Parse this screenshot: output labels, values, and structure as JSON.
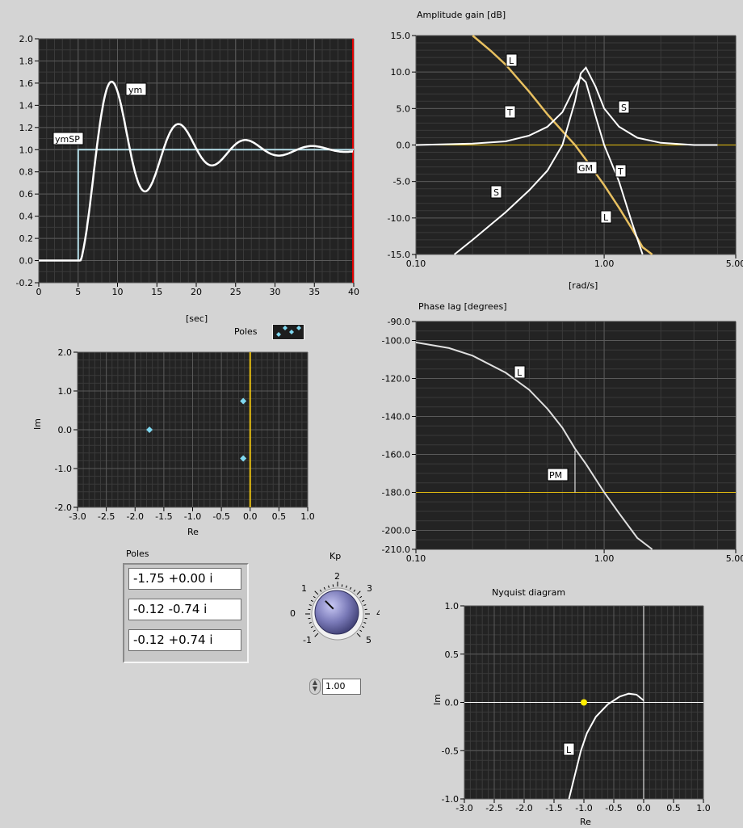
{
  "time_plot": {
    "xlabel": "[sec]",
    "yticks": [
      "2.0",
      "1.8",
      "1.6",
      "1.4",
      "1.2",
      "1.0",
      "0.8",
      "0.6",
      "0.4",
      "0.2",
      "0.0",
      "-0.2"
    ],
    "xticks": [
      "0",
      "5",
      "10",
      "15",
      "20",
      "25",
      "30",
      "35",
      "40"
    ],
    "labels": {
      "ym": "ym",
      "ymsp": "ymSP"
    }
  },
  "amp_plot": {
    "title": "Amplitude gain [dB]",
    "xlabel": "[rad/s]",
    "yticks": [
      "15.0",
      "10.0",
      "5.0",
      "0.0",
      "-5.0",
      "-10.0",
      "-15.0"
    ],
    "xticks": [
      "0.10",
      "1.00",
      "5.00"
    ],
    "curve_labels": {
      "l1": "L",
      "t1": "T",
      "s1": "S",
      "s2": "S",
      "gm": "GM",
      "t2": "T",
      "l2": "L"
    }
  },
  "phase_plot": {
    "title": "Phase lag [degrees]",
    "yticks": [
      "-90.0",
      "-100.0",
      "-120.0",
      "-140.0",
      "-160.0",
      "-180.0",
      "-200.0",
      "-210.0"
    ],
    "xticks": [
      "0.10",
      "1.00",
      "5.00"
    ],
    "curve_labels": {
      "l": "L",
      "pm": "PM"
    }
  },
  "poles_plot": {
    "legend_label": "Poles",
    "xlabel": "Re",
    "ylabel": "Im",
    "yticks": [
      "2.0",
      "1.0",
      "0.0",
      "-1.0",
      "-2.0"
    ],
    "xticks": [
      "-3.0",
      "-2.5",
      "-2.0",
      "-1.5",
      "-1.0",
      "-0.5",
      "0.0",
      "0.5",
      "1.0"
    ]
  },
  "poles_list": {
    "label": "Poles",
    "items": [
      "-1.75 +0.00 i",
      "-0.12 -0.74 i",
      "-0.12 +0.74 i"
    ]
  },
  "kp": {
    "label": "Kp",
    "value": "1.00",
    "knob_value": 1.0,
    "scale": [
      "-1",
      "0",
      "1",
      "2",
      "3",
      "4",
      "5"
    ]
  },
  "nyquist": {
    "title": "Nyquist diagram",
    "xlabel": "Re",
    "ylabel": "Im",
    "yticks": [
      "1.0",
      "0.5",
      "0.0",
      "-0.5",
      "-1.0"
    ],
    "xticks": [
      "-3.0",
      "-2.5",
      "-2.0",
      "-1.5",
      "-1.0",
      "-0.5",
      "0.0",
      "0.5",
      "1.0"
    ],
    "curve_label": "L"
  },
  "colors": {
    "plot_bg": "#232323",
    "grid_major": "#5a5a5a",
    "grid_minor": "#3a3a3a",
    "setpoint": "#b4dde8",
    "reference": "#e8c010",
    "marker": "#7fd8f0",
    "nyquist_point": "#ffee00"
  },
  "chart_data": [
    {
      "type": "line",
      "xlabel": "[sec]",
      "xlim": [
        0,
        40
      ],
      "ylim": [
        -0.2,
        2.0
      ],
      "series": [
        {
          "name": "ym",
          "x": [
            0,
            5,
            6,
            7,
            8,
            9,
            9.7,
            10.5,
            11.5,
            12.5,
            14,
            15.5,
            17,
            18.3,
            19.5,
            21,
            22.5,
            24,
            25.5,
            26.8,
            28,
            29.5,
            31,
            32.5,
            34,
            35.3,
            36.5,
            38,
            40
          ],
          "y": [
            0,
            0,
            0.05,
            0.4,
            0.95,
            1.4,
            1.54,
            1.48,
            1.15,
            0.82,
            0.68,
            0.9,
            1.13,
            1.19,
            1.1,
            0.95,
            0.89,
            0.97,
            1.05,
            1.07,
            1.03,
            0.98,
            0.96,
            0.99,
            1.02,
            1.03,
            1.01,
            1.0,
            1.0
          ]
        },
        {
          "name": "ymSP",
          "x": [
            0,
            5,
            5,
            40
          ],
          "y": [
            0,
            0,
            1,
            1
          ]
        }
      ]
    },
    {
      "type": "line",
      "title": "Amplitude gain [dB]",
      "xlabel": "[rad/s]",
      "xscale": "log",
      "xlim": [
        0.1,
        5.0
      ],
      "ylim": [
        -15,
        15
      ],
      "series": [
        {
          "name": "L",
          "x": [
            0.2,
            0.25,
            0.3,
            0.4,
            0.5,
            0.6,
            0.7,
            0.8,
            1.0,
            1.2,
            1.4,
            1.6,
            1.8
          ],
          "y": [
            15,
            12.9,
            11,
            7.3,
            4.2,
            1.9,
            0,
            -2,
            -5.5,
            -8.6,
            -11.4,
            -14,
            -16
          ]
        },
        {
          "name": "T",
          "x": [
            0.1,
            0.2,
            0.3,
            0.4,
            0.5,
            0.6,
            0.7,
            0.75,
            0.8,
            0.9,
            1.0,
            1.2,
            1.4,
            1.6
          ],
          "y": [
            0,
            0.2,
            0.5,
            1.3,
            2.5,
            4.5,
            8,
            9.3,
            8.6,
            4,
            0,
            -5,
            -10.5,
            -15
          ]
        },
        {
          "name": "S",
          "x": [
            0.16,
            0.2,
            0.3,
            0.4,
            0.5,
            0.6,
            0.7,
            0.75,
            0.8,
            0.9,
            1.0,
            1.2,
            1.5,
            2,
            3,
            4
          ],
          "y": [
            -15,
            -13,
            -9.2,
            -6.2,
            -3.5,
            0,
            6,
            9.8,
            10.6,
            8,
            5,
            2.5,
            1,
            0.3,
            0,
            0
          ]
        },
        {
          "name": "0 dB",
          "x": [
            0.1,
            5.0
          ],
          "y": [
            0,
            0
          ]
        }
      ]
    },
    {
      "type": "line",
      "title": "Phase lag [degrees]",
      "xscale": "log",
      "xlim": [
        0.1,
        5.0
      ],
      "ylim": [
        -210,
        -90
      ],
      "series": [
        {
          "name": "L",
          "x": [
            0.1,
            0.15,
            0.2,
            0.3,
            0.4,
            0.5,
            0.6,
            0.7,
            0.8,
            1.0,
            1.2,
            1.5,
            1.8
          ],
          "y": [
            -101,
            -104,
            -108,
            -117,
            -126,
            -136,
            -146,
            -157,
            -165,
            -180,
            -191,
            -204,
            -212
          ]
        },
        {
          "name": "-180",
          "x": [
            0.1,
            5.0
          ],
          "y": [
            -180,
            -180
          ]
        }
      ],
      "phase_margin": {
        "x": 0.7,
        "y_from": -158,
        "y_to": -180
      }
    },
    {
      "type": "scatter",
      "xlabel": "Re",
      "ylabel": "Im",
      "xlim": [
        -3.0,
        1.0
      ],
      "ylim": [
        -2.0,
        2.0
      ],
      "series": [
        {
          "name": "Poles",
          "x": [
            -1.75,
            -0.12,
            -0.12
          ],
          "y": [
            0.0,
            -0.74,
            0.74
          ]
        }
      ]
    },
    {
      "type": "line",
      "title": "Nyquist diagram",
      "xlabel": "Re",
      "ylabel": "Im",
      "xlim": [
        -3.0,
        1.0
      ],
      "ylim": [
        -1.0,
        1.0
      ],
      "series": [
        {
          "name": "L",
          "x": [
            -1.25,
            -1.15,
            -1.05,
            -0.95,
            -0.8,
            -0.6,
            -0.4,
            -0.25,
            -0.12,
            0.0
          ],
          "y": [
            -1.0,
            -0.75,
            -0.5,
            -0.32,
            -0.15,
            -0.02,
            0.06,
            0.09,
            0.08,
            0.02
          ]
        },
        {
          "name": "critical point",
          "x": [
            -1.0
          ],
          "y": [
            0.0
          ]
        }
      ]
    }
  ]
}
